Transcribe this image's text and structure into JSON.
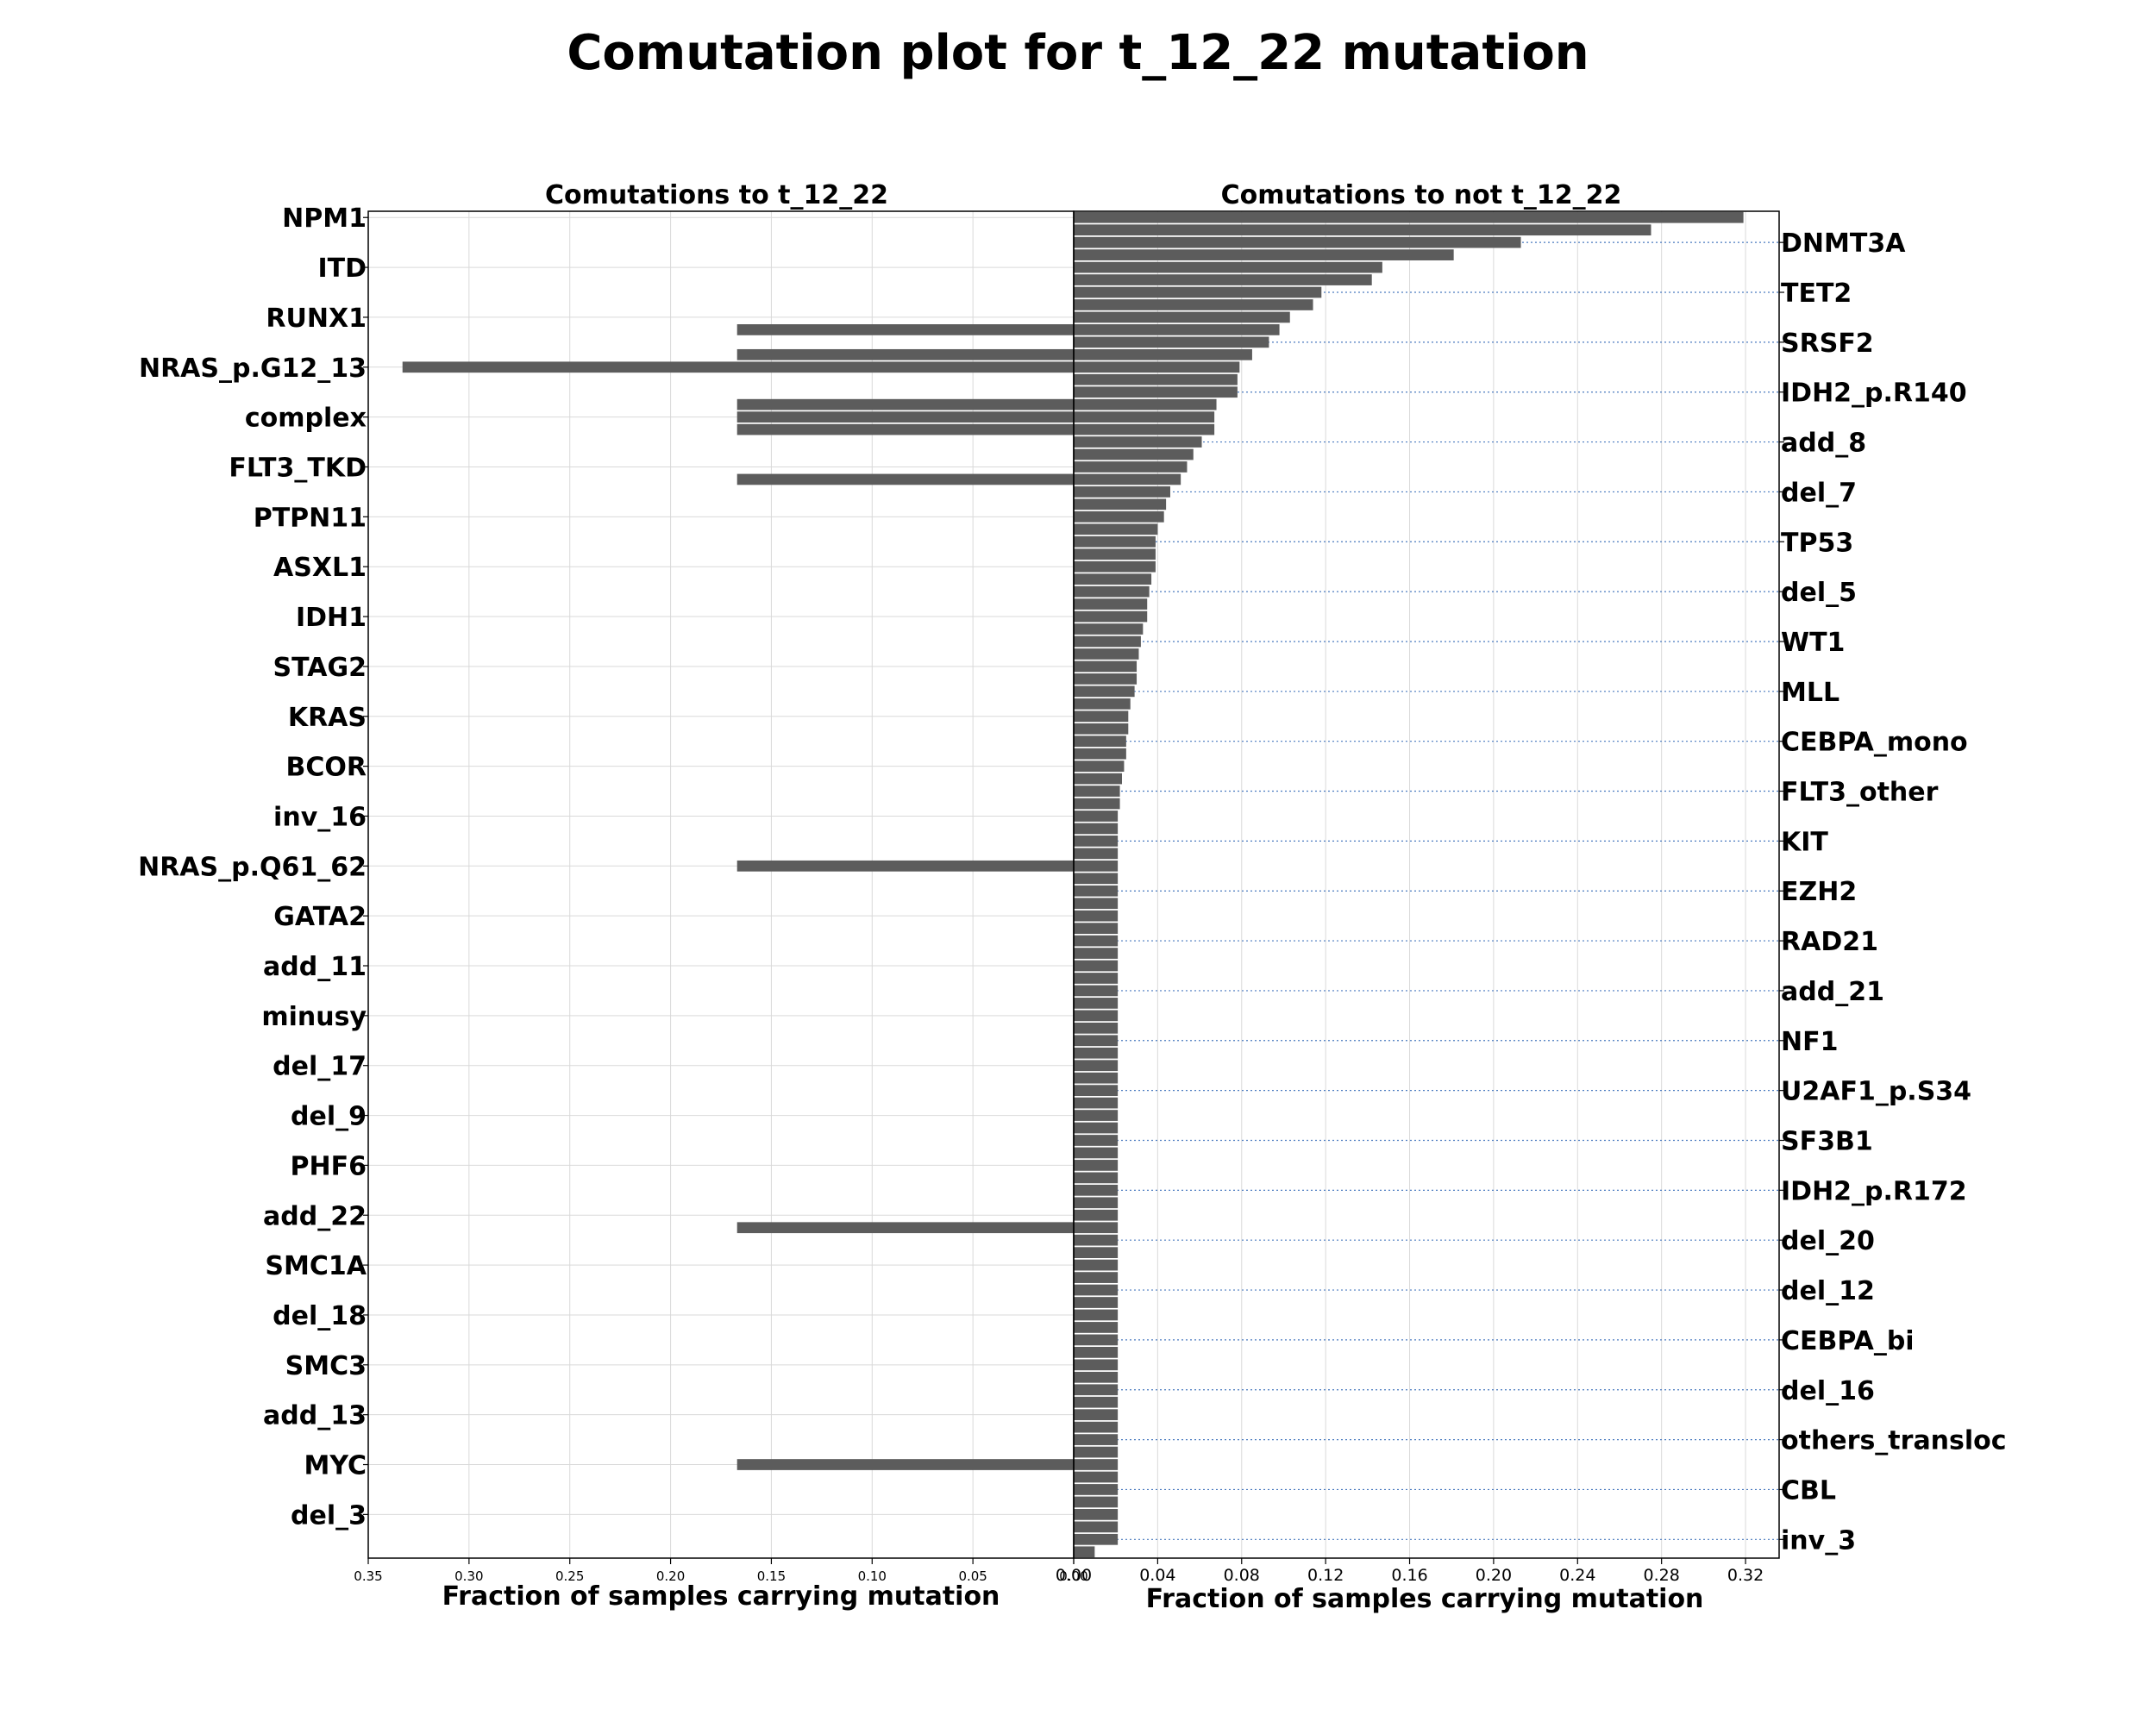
{
  "chart_data": {
    "type": "bar",
    "orientation": "horizontal",
    "title": "Comutation plot for t_12_22 mutation",
    "panels": [
      {
        "title": "Comutations to t_12_22",
        "xlabel": "Fraction of samples carrying mutation",
        "xlim": [
          0.35,
          0.0
        ],
        "xticks": [
          0.35,
          0.3,
          0.25,
          0.2,
          0.15,
          0.1,
          0.05,
          0.0
        ],
        "ticklabels": [
          "0.35",
          "0.30",
          "0.25",
          "0.20",
          "0.15",
          "0.10",
          "0.05",
          "0.00"
        ],
        "label_side": "left",
        "grid": true,
        "values": [
          0,
          0,
          0,
          0,
          0,
          0,
          0,
          0,
          0,
          0.167,
          0,
          0.167,
          0.333,
          0,
          0,
          0.167,
          0.167,
          0.167,
          0,
          0,
          0,
          0.167,
          0,
          0,
          0,
          0,
          0,
          0,
          0,
          0,
          0,
          0,
          0,
          0,
          0,
          0,
          0,
          0,
          0,
          0,
          0,
          0,
          0,
          0,
          0,
          0,
          0,
          0,
          0,
          0,
          0,
          0,
          0.167,
          0,
          0,
          0,
          0,
          0,
          0,
          0,
          0,
          0,
          0,
          0,
          0,
          0,
          0,
          0,
          0,
          0,
          0,
          0,
          0,
          0,
          0,
          0,
          0,
          0,
          0,
          0,
          0,
          0.167,
          0,
          0,
          0,
          0,
          0,
          0,
          0,
          0,
          0,
          0,
          0,
          0,
          0,
          0,
          0,
          0,
          0,
          0,
          0.167,
          0,
          0,
          0,
          0,
          0,
          0,
          0,
          0,
          0
        ]
      },
      {
        "title": "Comutations to not t_12_22",
        "xlabel": "Fraction of samples carrying mutation",
        "xlim": [
          0.0,
          0.336
        ],
        "xticks": [
          0.0,
          0.04,
          0.08,
          0.12,
          0.16,
          0.2,
          0.24,
          0.28,
          0.32
        ],
        "ticklabels": [
          "0.00",
          "0.04",
          "0.08",
          "0.12",
          "0.16",
          "0.20",
          "0.24",
          "0.28",
          "0.32"
        ],
        "label_side": "right",
        "grid": true,
        "values": [
          0.319,
          0.275,
          0.213,
          0.181,
          0.147,
          0.142,
          0.118,
          0.114,
          0.103,
          0.098,
          0.093,
          0.085,
          0.079,
          0.078,
          0.078,
          0.068,
          0.067,
          0.067,
          0.061,
          0.057,
          0.054,
          0.051,
          0.046,
          0.044,
          0.043,
          0.04,
          0.039,
          0.039,
          0.039,
          0.037,
          0.036,
          0.035,
          0.035,
          0.033,
          0.032,
          0.031,
          0.03,
          0.03,
          0.029,
          0.027,
          0.026,
          0.026,
          0.025,
          0.025,
          0.024,
          0.023,
          0.022,
          0.022,
          0.021,
          0.021,
          0.021,
          0.021,
          0.021,
          0.021,
          0.021,
          0.021,
          0.021,
          0.021,
          0.021,
          0.021,
          0.021,
          0.021,
          0.021,
          0.021,
          0.021,
          0.021,
          0.021,
          0.021,
          0.021,
          0.021,
          0.021,
          0.021,
          0.021,
          0.021,
          0.021,
          0.021,
          0.021,
          0.021,
          0.021,
          0.021,
          0.021,
          0.021,
          0.021,
          0.021,
          0.021,
          0.021,
          0.021,
          0.021,
          0.021,
          0.021,
          0.021,
          0.021,
          0.021,
          0.021,
          0.021,
          0.021,
          0.021,
          0.021,
          0.021,
          0.021,
          0.021,
          0.021,
          0.021,
          0.021,
          0.021,
          0.021,
          0.021,
          0.01
        ]
      }
    ],
    "left_labels": [
      "NPM1",
      "ITD",
      "RUNX1",
      "NRAS_p.G12_13",
      "complex",
      "FLT3_TKD",
      "PTPN11",
      "ASXL1",
      "IDH1",
      "STAG2",
      "KRAS",
      "BCOR",
      "inv_16",
      "NRAS_p.Q61_62",
      "GATA2",
      "add_11",
      "minusy",
      "del_17",
      "del_9",
      "PHF6",
      "add_22",
      "SMC1A",
      "del_18",
      "SMC3",
      "add_13",
      "MYC",
      "del_3"
    ],
    "right_labels": [
      "DNMT3A",
      "TET2",
      "SRSF2",
      "IDH2_p.R140",
      "add_8",
      "del_7",
      "TP53",
      "del_5",
      "WT1",
      "MLL",
      "CEBPA_mono",
      "FLT3_other",
      "KIT",
      "EZH2",
      "RAD21",
      "add_21",
      "NF1",
      "U2AF1_p.S34",
      "SF3B1",
      "IDH2_p.R172",
      "del_20",
      "del_12",
      "CEBPA_bi",
      "del_16",
      "others_transloc",
      "CBL",
      "inv_3"
    ],
    "colors": {
      "bar": "#5c5c5c",
      "right_label_guide": "#4a7abf",
      "grid": "#d9d9d9"
    }
  }
}
